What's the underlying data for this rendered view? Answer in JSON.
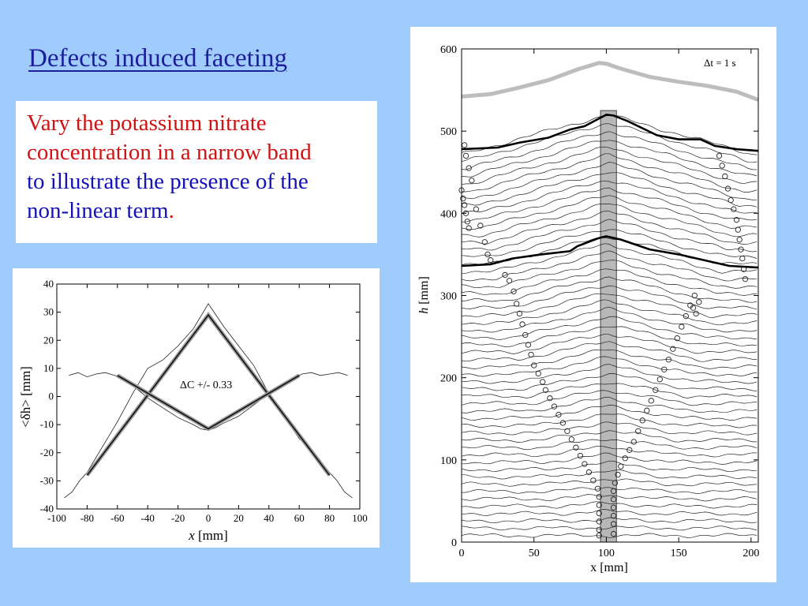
{
  "slide": {
    "title": "Defects induced faceting",
    "text_lines": [
      {
        "text": "Vary the potassium nitrate",
        "color": "red"
      },
      {
        "text": "concentration in a narrow band",
        "color": "red"
      },
      {
        "text": "to illustrate the presence of the",
        "color": "blue"
      },
      {
        "text": "non-linear term",
        "color": "blue"
      }
    ],
    "text_end_period": ".",
    "colors": {
      "background": "#9fccfc",
      "title": "#1e1e9a",
      "red": "#d01212",
      "blue": "#1212b8"
    }
  },
  "chart_data": [
    {
      "type": "line",
      "title": "",
      "annotation": "ΔC +/- 0.33",
      "xlabel_prefix": "x",
      "xlabel_unit": " [mm]",
      "ylabel_text": "<δh> [mm]",
      "xlim": [
        -100,
        100
      ],
      "ylim": [
        -40,
        40
      ],
      "xticks": [
        -100,
        -80,
        -60,
        -40,
        -20,
        0,
        20,
        40,
        60,
        80,
        100
      ],
      "yticks": [
        -40,
        -30,
        -20,
        -10,
        0,
        10,
        20,
        30,
        40
      ],
      "series": [
        {
          "style": "thin",
          "x": [
            -92,
            -86,
            -80,
            -74,
            -68,
            -62,
            -56,
            -50,
            -40,
            -30,
            -20,
            -10,
            -5,
            0,
            5,
            10,
            20,
            30,
            40,
            50,
            56,
            62,
            68,
            74,
            80,
            86,
            92
          ],
          "y": [
            7.5,
            8.5,
            7,
            8,
            8.5,
            7.5,
            6.5,
            4,
            -0.5,
            -4,
            -7.5,
            -10,
            -11.5,
            -12,
            -11,
            -9.5,
            -7,
            -3,
            1,
            5,
            6.5,
            8,
            8.5,
            7.5,
            8,
            8.5,
            7.5
          ]
        },
        {
          "style": "thin",
          "x": [
            -95,
            -90,
            -85,
            -80,
            -70,
            -60,
            -50,
            -40,
            -30,
            -20,
            -10,
            0,
            10,
            20,
            30,
            40,
            50,
            60,
            70,
            80,
            85,
            90,
            95
          ],
          "y": [
            -36,
            -34,
            -30,
            -27,
            -18,
            -9,
            1,
            10,
            13,
            18,
            24,
            33,
            25,
            18,
            11,
            1,
            -7,
            -15,
            -20,
            -27,
            -30,
            -34,
            -36
          ]
        },
        {
          "style": "bold",
          "x": [
            -80,
            0,
            80
          ],
          "y": [
            -28,
            29,
            -28
          ]
        },
        {
          "style": "bold",
          "x": [
            -60,
            0,
            60
          ],
          "y": [
            7.5,
            -11.5,
            7.5
          ]
        }
      ]
    },
    {
      "type": "line",
      "title": "",
      "annotation": "Δt = 1 s",
      "xlabel_text": "x [mm]",
      "ylabel_prefix": "h",
      "ylabel_unit": " [mm]",
      "xlim": [
        0,
        205
      ],
      "ylim": [
        0,
        600
      ],
      "xticks": [
        0,
        50,
        100,
        150,
        200
      ],
      "yticks": [
        0,
        100,
        200,
        300,
        400,
        500,
        600
      ],
      "shaded_band_x": [
        96,
        107
      ],
      "profile_count": 53,
      "top_gray_profile": {
        "x": [
          0,
          20,
          40,
          60,
          80,
          95,
          100,
          110,
          130,
          150,
          170,
          190,
          205
        ],
        "y": [
          542,
          545,
          553,
          562,
          575,
          583,
          582,
          576,
          566,
          560,
          555,
          548,
          538
        ]
      },
      "bold_profiles": [
        {
          "x": [
            0,
            25,
            40,
            60,
            75,
            85,
            100,
            105,
            115,
            135,
            150,
            165,
            175,
            190,
            205
          ],
          "y": [
            478,
            480,
            486,
            492,
            502,
            506,
            520,
            519,
            512,
            495,
            490,
            490,
            482,
            478,
            476
          ]
        },
        {
          "x": [
            0,
            20,
            35,
            55,
            75,
            80,
            95,
            100,
            110,
            130,
            150,
            170,
            185,
            205
          ],
          "y": [
            336,
            338,
            345,
            350,
            354,
            360,
            370,
            372,
            368,
            356,
            350,
            342,
            336,
            334
          ]
        }
      ],
      "facet_markers": [
        {
          "x": [
            2,
            3,
            5,
            7,
            10,
            13,
            16,
            18,
            20
          ],
          "y": [
            483,
            470,
            455,
            440,
            405,
            385,
            365,
            350,
            343
          ]
        },
        {
          "x": [
            0,
            1,
            2,
            3,
            4,
            5
          ],
          "y": [
            428,
            418,
            410,
            400,
            390,
            382
          ]
        },
        {
          "x": [
            30,
            33,
            36,
            38,
            40,
            42,
            44,
            46,
            48,
            50,
            53,
            56,
            58,
            61,
            64,
            67,
            70,
            73,
            76,
            79,
            82,
            85,
            88,
            91,
            94,
            95,
            95,
            95,
            95,
            95,
            95
          ],
          "y": [
            325,
            318,
            305,
            290,
            278,
            265,
            252,
            240,
            228,
            215,
            205,
            195,
            185,
            175,
            165,
            155,
            145,
            135,
            125,
            115,
            105,
            95,
            85,
            75,
            65,
            55,
            45,
            35,
            25,
            15,
            8
          ]
        },
        {
          "x": [
            105,
            106,
            108,
            110,
            113,
            116,
            119,
            122,
            125,
            128,
            131,
            134,
            137,
            140,
            143,
            146,
            149,
            152,
            155,
            158,
            161
          ],
          "y": [
            62,
            72,
            82,
            92,
            102,
            112,
            122,
            135,
            148,
            160,
            172,
            185,
            198,
            210,
            222,
            235,
            248,
            262,
            275,
            288,
            300
          ],
          "x2": [
            105,
            105,
            105,
            105,
            105
          ],
          "y2": [
            52,
            42,
            32,
            22,
            10
          ]
        },
        {
          "x": [
            178,
            180,
            182,
            184,
            186,
            188,
            190,
            191,
            192,
            193,
            194,
            195,
            196
          ],
          "y": [
            470,
            458,
            445,
            430,
            416,
            405,
            392,
            380,
            368,
            356,
            345,
            332,
            320
          ]
        },
        {
          "x": [
            160,
            162,
            164
          ],
          "y": [
            285,
            278,
            292
          ]
        }
      ]
    }
  ]
}
